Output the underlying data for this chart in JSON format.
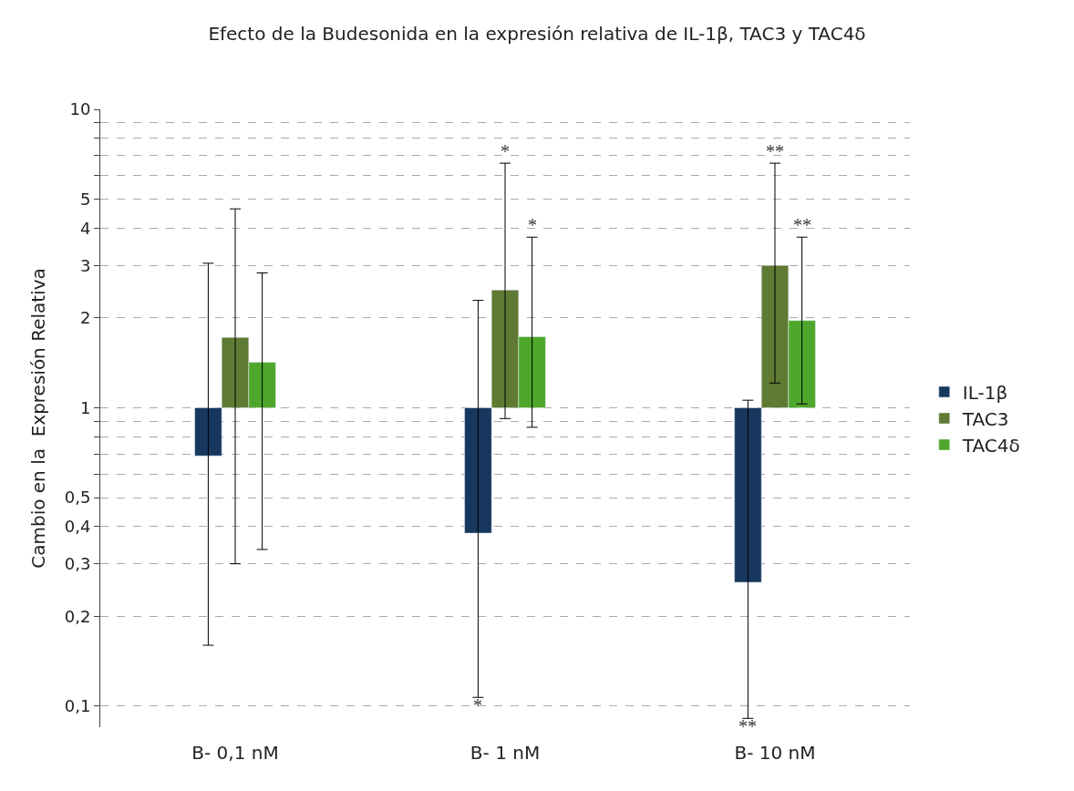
{
  "chart_data": {
    "type": "bar",
    "title": "Efecto de la Budesonida en la expresión relativa de IL-1β, TAC3 y TAC4δ",
    "ylabel": "Cambio en la  Expresión Relativa",
    "categories": [
      "B- 0,1 nM",
      "B- 1 nM",
      "B- 10 nM"
    ],
    "series": [
      {
        "name": "IL-1β",
        "color": "#17375e",
        "base": [
          1,
          1,
          1
        ],
        "values": [
          -0.31,
          -0.62,
          -0.74
        ],
        "errors": [
          [
            0.16,
            3.05
          ],
          [
            0.107,
            2.29
          ],
          [
            0.091,
            1.06
          ]
        ]
      },
      {
        "name": "TAC3",
        "color": "#5f7a33",
        "base": [
          1,
          1,
          1
        ],
        "values": [
          0.72,
          1.48,
          2.0
        ],
        "errors": [
          [
            0.3,
            4.64
          ],
          [
            0.92,
            6.6
          ],
          [
            1.21,
            6.6
          ]
        ]
      },
      {
        "name": "TAC4δ",
        "color": "#4ea72a",
        "base": [
          1,
          1,
          1
        ],
        "values": [
          0.42,
          0.73,
          0.96
        ],
        "errors": [
          [
            0.335,
            2.83
          ],
          [
            0.86,
            3.73
          ],
          [
            1.03,
            3.73
          ]
        ]
      }
    ],
    "log": true,
    "ylim": [
      0.085,
      10
    ],
    "yticks": [
      {
        "value": 0.1,
        "label": "0,1"
      },
      {
        "value": 0.2,
        "label": "0,2"
      },
      {
        "value": 0.3,
        "label": "0,3"
      },
      {
        "value": 0.4,
        "label": "0,4"
      },
      {
        "value": 0.5,
        "label": "0,5"
      },
      {
        "value": 0.6,
        "label": null
      },
      {
        "value": 0.7,
        "label": null
      },
      {
        "value": 0.8,
        "label": null
      },
      {
        "value": 0.9,
        "label": null
      },
      1,
      2,
      3,
      4,
      5,
      {
        "value": 6,
        "label": null
      },
      {
        "value": 7,
        "label": null
      },
      {
        "value": 8,
        "label": null
      },
      {
        "value": 9,
        "label": null
      },
      10
    ],
    "grid": "y",
    "legend": "right",
    "annotations": [
      {
        "text": "*",
        "x": "B- 1 nM",
        "y": 6.6
      },
      {
        "text": "*",
        "x": "B- 1 nM",
        "y": 3.73
      },
      "*",
      {
        "text": "**",
        "x": "B- 10 nM",
        "y": 6.6
      },
      {
        "text": "**",
        "x": "B- 10 nM",
        "y": 3.73
      },
      "**"
    ]
  }
}
